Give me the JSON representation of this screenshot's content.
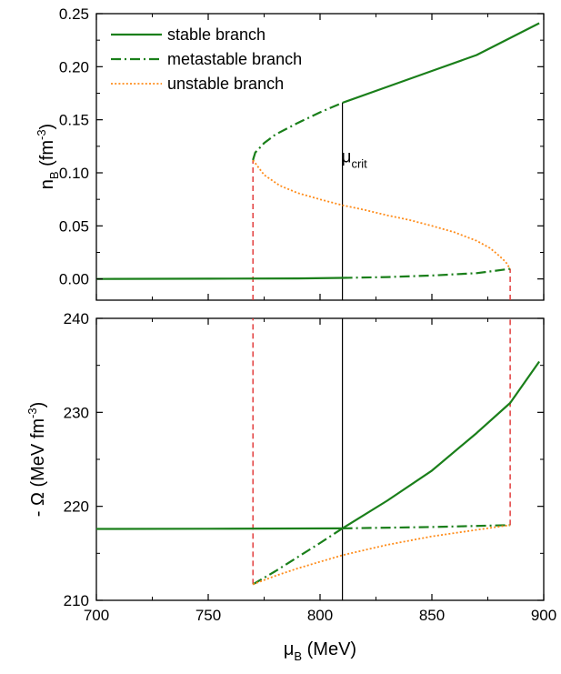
{
  "colors": {
    "stable": "#1a7f1a",
    "metastable": "#1a7f1a",
    "unstable": "#ff8c1a",
    "marker": "#e03030",
    "critical": "#000000"
  },
  "chart_data": [
    {
      "type": "line",
      "panel": "top",
      "xlim": [
        700,
        900
      ],
      "ylim": [
        -0.02,
        0.25
      ],
      "xticks": [
        "700",
        "750",
        "800",
        "850",
        "900"
      ],
      "yticks": [
        {
          "value": 0.0,
          "label": "0.00"
        },
        {
          "value": 0.05,
          "label": "0.05"
        },
        {
          "value": 0.1,
          "label": "0.10"
        },
        {
          "value": 0.15,
          "label": "0.15"
        },
        {
          "value": 0.2,
          "label": "0.20"
        },
        {
          "value": 0.25,
          "label": "0.25"
        }
      ],
      "ylabel": {
        "main": "n",
        "sub": "B",
        "unit_prefix": " (fm",
        "sup": "-3",
        "unit_suffix": ")"
      },
      "legend": {
        "position": "top-left",
        "entries": [
          {
            "label": "stable branch",
            "style": "solid"
          },
          {
            "label": "metastable branch",
            "style": "dashdot"
          },
          {
            "label": "unstable branch",
            "style": "dotted"
          }
        ]
      },
      "annotation": {
        "main": "μ",
        "sub": "crit",
        "x": 812,
        "y": 0.115
      },
      "series": [
        {
          "key": "stable-low",
          "style": "solid",
          "x": [
            700,
            750,
            790,
            810
          ],
          "y": [
            0.0,
            0.0002,
            0.0005,
            0.001
          ]
        },
        {
          "key": "meta-low",
          "style": "dashdot",
          "x": [
            810,
            830,
            850,
            870,
            885
          ],
          "y": [
            0.001,
            0.0018,
            0.0032,
            0.0055,
            0.0095
          ]
        },
        {
          "key": "unstable",
          "style": "dotted",
          "x": [
            770,
            775,
            782,
            790,
            800,
            810,
            820,
            830,
            840,
            850,
            860,
            870,
            876,
            880,
            883,
            885
          ],
          "y": [
            0.112,
            0.098,
            0.088,
            0.081,
            0.075,
            0.0695,
            0.065,
            0.06,
            0.0555,
            0.05,
            0.044,
            0.036,
            0.029,
            0.022,
            0.016,
            0.0095
          ]
        },
        {
          "key": "meta-high",
          "style": "dashdot",
          "x": [
            770,
            771,
            775,
            780,
            790,
            800,
            810
          ],
          "y": [
            0.112,
            0.119,
            0.128,
            0.136,
            0.147,
            0.157,
            0.166
          ]
        },
        {
          "key": "stable-high",
          "style": "solid",
          "x": [
            810,
            830,
            850,
            870,
            898
          ],
          "y": [
            0.166,
            0.181,
            0.196,
            0.211,
            0.241
          ]
        }
      ],
      "vlines": [
        {
          "x": 770,
          "style": "marker",
          "y1": -0.02,
          "y2": 0.112
        },
        {
          "x": 885,
          "style": "marker",
          "y1": -0.02,
          "y2": 0.0095
        },
        {
          "x": 810,
          "style": "critical",
          "y1": -0.02,
          "y2": 0.166
        }
      ]
    },
    {
      "type": "line",
      "panel": "bottom",
      "xlim": [
        700,
        900
      ],
      "ylim": [
        210,
        240
      ],
      "xticks": [
        "700",
        "750",
        "800",
        "850",
        "900"
      ],
      "yticks": [
        {
          "value": 210,
          "label": "210"
        },
        {
          "value": 220,
          "label": "220"
        },
        {
          "value": 230,
          "label": "230"
        },
        {
          "value": 240,
          "label": "240"
        }
      ],
      "xlabel": {
        "main": "μ",
        "sub": "B",
        "suffix": " (MeV)"
      },
      "ylabel": {
        "prefix": "- Ω (MeV fm",
        "sup": "-3",
        "suffix": ")"
      },
      "series": [
        {
          "key": "stable-low",
          "style": "solid",
          "x": [
            700,
            750,
            810
          ],
          "y": [
            217.6,
            217.62,
            217.65
          ]
        },
        {
          "key": "meta-low",
          "style": "dashdot",
          "x": [
            810,
            850,
            885
          ],
          "y": [
            217.65,
            217.8,
            218.0
          ]
        },
        {
          "key": "meta-high",
          "style": "dashdot",
          "x": [
            770,
            775,
            780,
            790,
            800,
            810
          ],
          "y": [
            211.7,
            212.4,
            213.1,
            214.6,
            216.1,
            217.65
          ]
        },
        {
          "key": "unstable",
          "style": "dotted",
          "x": [
            770,
            780,
            790,
            800,
            810,
            830,
            850,
            870,
            885
          ],
          "y": [
            211.7,
            212.6,
            213.4,
            214.1,
            214.8,
            215.9,
            216.8,
            217.5,
            218.0
          ]
        },
        {
          "key": "stable-high",
          "style": "solid",
          "x": [
            810,
            830,
            850,
            870,
            885,
            898
          ],
          "y": [
            217.65,
            220.6,
            223.8,
            227.8,
            231.0,
            235.4
          ]
        }
      ],
      "vlines": [
        {
          "x": 770,
          "style": "marker",
          "y1": 211.7,
          "y2": 240
        },
        {
          "x": 885,
          "style": "marker",
          "y1": 218.0,
          "y2": 240
        },
        {
          "x": 810,
          "style": "critical",
          "y1": 210,
          "y2": 240
        }
      ]
    }
  ]
}
